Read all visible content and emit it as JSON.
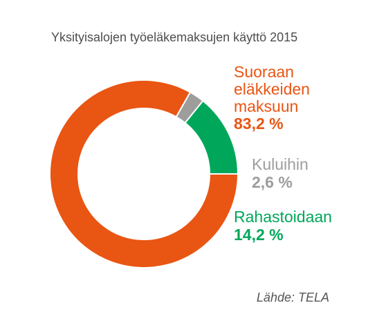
{
  "chart_data": {
    "type": "pie",
    "title": "Yksityisalojen työeläkemaksujen käyttö 2015",
    "source": "Lähde: TELA",
    "series": [
      {
        "name": "Suoraan\neläkkeiden\nmaksuun",
        "value": 83.2,
        "label": "83,2 %",
        "color": "#e95513"
      },
      {
        "name": "Kuluihin",
        "value": 2.6,
        "label": "2,6 %",
        "color": "#9d9d9c"
      },
      {
        "name": "Rahastoidaan",
        "value": 14.2,
        "label": "14,2 %",
        "color": "#00a75a"
      }
    ]
  }
}
